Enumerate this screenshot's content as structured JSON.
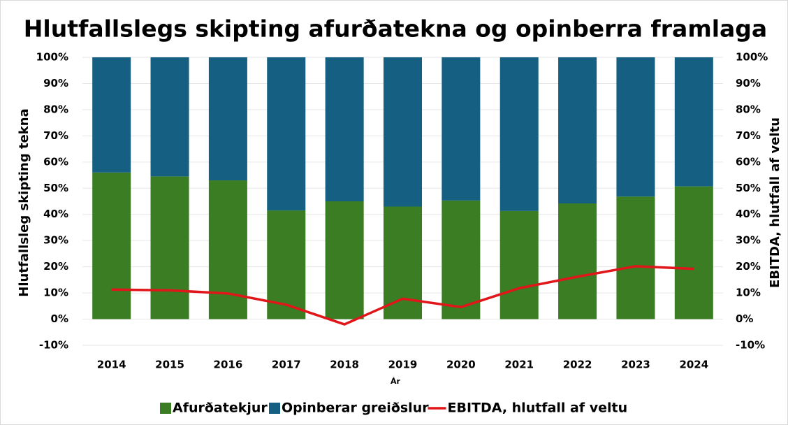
{
  "chart_data": {
    "type": "bar",
    "stacked": true,
    "title": "Hlutfallslegs skipting afurðatekna og opinberra framlaga",
    "x_label": "Ár",
    "y_label": "Hlutfallsleg skipting tekna",
    "y2_label": "EBITDA, hlutfall af veltu",
    "categories": [
      "2014",
      "2015",
      "2016",
      "2017",
      "2018",
      "2019",
      "2020",
      "2021",
      "2022",
      "2023",
      "2024"
    ],
    "series": [
      {
        "name": "Afurðatekjur",
        "color": "#3a7d22",
        "values": [
          56,
          54.5,
          53,
          41.5,
          45,
          43,
          45.3,
          41.3,
          44.2,
          46.8,
          50.7
        ]
      },
      {
        "name": "Opinberar greiðslur",
        "color": "#156082",
        "values": [
          44,
          45.5,
          47,
          58.5,
          55,
          57,
          54.7,
          58.7,
          55.8,
          53.2,
          49.3
        ]
      },
      {
        "name": "EBITDA, hlutfall af veltu",
        "color": "#e0161a",
        "type": "line",
        "axis": "y2",
        "values": [
          11.3,
          11,
          9.8,
          5.5,
          -2,
          7.8,
          4.6,
          11.8,
          16.2,
          20.2,
          19.2
        ]
      }
    ],
    "ylim": [
      -10,
      100
    ],
    "yticks": [
      {
        "value": -10,
        "label": "-10%"
      },
      {
        "value": 0,
        "label": "0%"
      },
      {
        "value": 10,
        "label": "10%"
      },
      {
        "value": 20,
        "label": "20%"
      },
      {
        "value": 30,
        "label": "30%"
      },
      {
        "value": 40,
        "label": "40%"
      },
      {
        "value": 50,
        "label": "50%"
      },
      {
        "value": 60,
        "label": "60%"
      },
      {
        "value": 70,
        "label": "70%"
      },
      {
        "value": 80,
        "label": "80%"
      },
      {
        "value": 90,
        "label": "90%"
      },
      {
        "value": 100,
        "label": "100%"
      }
    ],
    "y2lim": [
      -10,
      100
    ],
    "y2ticks": [
      {
        "value": -10,
        "label": "-10%"
      },
      {
        "value": 0,
        "label": "0%"
      },
      {
        "value": 10,
        "label": "10%"
      },
      {
        "value": 20,
        "label": "20%"
      },
      {
        "value": 30,
        "label": "30%"
      },
      {
        "value": 40,
        "label": "40%"
      },
      {
        "value": 50,
        "label": "50%"
      },
      {
        "value": 60,
        "label": "60%"
      },
      {
        "value": 70,
        "label": "70%"
      },
      {
        "value": 80,
        "label": "80%"
      },
      {
        "value": 90,
        "label": "90%"
      },
      {
        "value": 100,
        "label": "100%"
      }
    ],
    "grid": true,
    "legend": "bottom"
  }
}
